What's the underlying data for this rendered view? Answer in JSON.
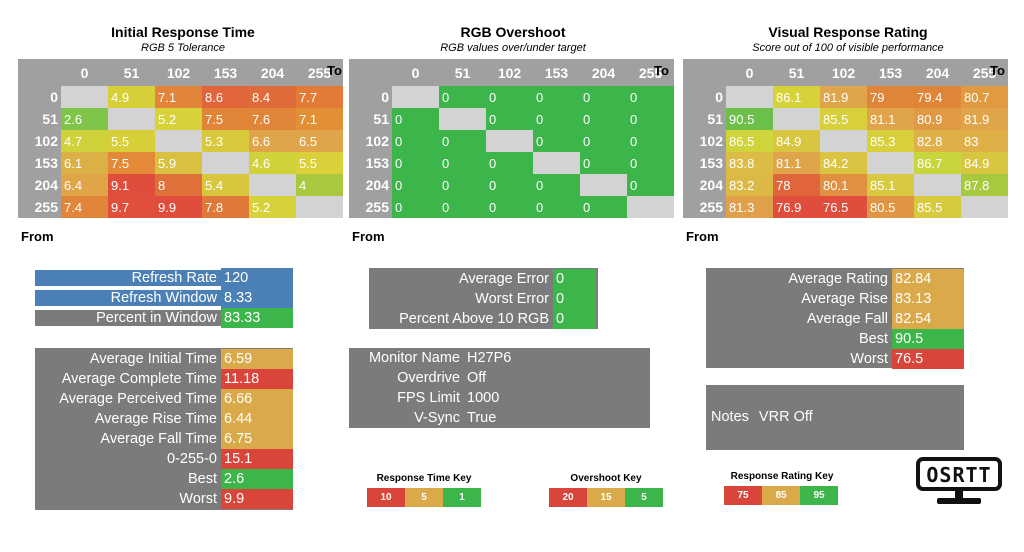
{
  "colors": {
    "header_gray": "#a0a0a0",
    "box_gray": "#7b7b7b",
    "empty_cell": "#d3d3d3",
    "blue": "#4a80b5",
    "green": "#3cb54a",
    "yellow_green": "#a9c83f",
    "yellow": "#d8d035",
    "gold": "#d9a94a",
    "orange": "#e27a36",
    "red": "#d9453a"
  },
  "chart_data": [
    {
      "type": "heatmap",
      "title": "Initial Response Time",
      "subtitle": "RGB 5 Tolerance",
      "xlabel": "To",
      "ylabel": "From",
      "columns": [
        "0",
        "51",
        "102",
        "153",
        "204",
        "255"
      ],
      "rows": [
        "0",
        "51",
        "102",
        "153",
        "204",
        "255"
      ],
      "values": [
        [
          "",
          "4.9",
          "7.1",
          "8.6",
          "8.4",
          "7.7"
        ],
        [
          "2.6",
          "",
          "5.2",
          "7.5",
          "7.6",
          "7.1"
        ],
        [
          "4.7",
          "5.5",
          "",
          "5.3",
          "6.6",
          "6.5"
        ],
        [
          "6.1",
          "7.5",
          "5.9",
          "",
          "4.6",
          "5.5"
        ],
        [
          "6.4",
          "9.1",
          "8",
          "5.4",
          "",
          "4"
        ],
        [
          "7.4",
          "9.7",
          "9.9",
          "7.8",
          "5.2",
          ""
        ]
      ],
      "colors": [
        [
          "#d3d3d3",
          "#d6cf38",
          "#e2853a",
          "#e0653a",
          "#e06b3a",
          "#e37a36"
        ],
        [
          "#7fc54a",
          "#d3d3d3",
          "#d7d13a",
          "#e08437",
          "#e08437",
          "#e29036"
        ],
        [
          "#cfd23a",
          "#d6cf38",
          "#d3d3d3",
          "#d8c83c",
          "#e0a44a",
          "#e0a44a"
        ],
        [
          "#dbb046",
          "#e38a38",
          "#d9c040",
          "#d3d3d3",
          "#d0d23a",
          "#d9d03a"
        ],
        [
          "#e0a449",
          "#e04d3c",
          "#e0703a",
          "#d8c63c",
          "#d3d3d3",
          "#a9c83f"
        ],
        [
          "#e0853a",
          "#e14e3c",
          "#e04d3c",
          "#e0783a",
          "#d6d23a",
          "#d3d3d3"
        ]
      ]
    },
    {
      "type": "heatmap",
      "title": "RGB Overshoot",
      "subtitle": "RGB values over/under target",
      "xlabel": "To",
      "ylabel": "From",
      "columns": [
        "0",
        "51",
        "102",
        "153",
        "204",
        "255"
      ],
      "rows": [
        "0",
        "51",
        "102",
        "153",
        "204",
        "255"
      ],
      "values": [
        [
          "",
          "0",
          "0",
          "0",
          "0",
          "0"
        ],
        [
          "0",
          "",
          "0",
          "0",
          "0",
          "0"
        ],
        [
          "0",
          "0",
          "",
          "0",
          "0",
          "0"
        ],
        [
          "0",
          "0",
          "0",
          "",
          "0",
          "0"
        ],
        [
          "0",
          "0",
          "0",
          "0",
          "",
          "0"
        ],
        [
          "0",
          "0",
          "0",
          "0",
          "0",
          ""
        ]
      ],
      "colors": [
        [
          "#d3d3d3",
          "#3cb54a",
          "#3cb54a",
          "#3cb54a",
          "#3cb54a",
          "#3cb54a"
        ],
        [
          "#3cb54a",
          "#d3d3d3",
          "#3cb54a",
          "#3cb54a",
          "#3cb54a",
          "#3cb54a"
        ],
        [
          "#3cb54a",
          "#3cb54a",
          "#d3d3d3",
          "#3cb54a",
          "#3cb54a",
          "#3cb54a"
        ],
        [
          "#3cb54a",
          "#3cb54a",
          "#3cb54a",
          "#d3d3d3",
          "#3cb54a",
          "#3cb54a"
        ],
        [
          "#3cb54a",
          "#3cb54a",
          "#3cb54a",
          "#3cb54a",
          "#d3d3d3",
          "#3cb54a"
        ],
        [
          "#3cb54a",
          "#3cb54a",
          "#3cb54a",
          "#3cb54a",
          "#3cb54a",
          "#d3d3d3"
        ]
      ]
    },
    {
      "type": "heatmap",
      "title": "Visual Response Rating",
      "subtitle": "Score out of 100 of visible performance",
      "xlabel": "To",
      "ylabel": "From",
      "columns": [
        "0",
        "51",
        "102",
        "153",
        "204",
        "255"
      ],
      "rows": [
        "0",
        "51",
        "102",
        "153",
        "204",
        "255"
      ],
      "values": [
        [
          "",
          "86.1",
          "81.9",
          "79",
          "79.4",
          "80.7"
        ],
        [
          "90.5",
          "",
          "85.5",
          "81.1",
          "80.9",
          "81.9"
        ],
        [
          "86.5",
          "84.9",
          "",
          "85.3",
          "82.8",
          "83"
        ],
        [
          "83.8",
          "81.1",
          "84.2",
          "",
          "86.7",
          "84.9"
        ],
        [
          "83.2",
          "78",
          "80.1",
          "85.1",
          "",
          "87.8"
        ],
        [
          "81.3",
          "76.9",
          "76.5",
          "80.5",
          "85.5",
          ""
        ]
      ],
      "colors": [
        [
          "#d3d3d3",
          "#d6d23a",
          "#e0a44a",
          "#e08437",
          "#e08437",
          "#e09a40"
        ],
        [
          "#6cc04a",
          "#d3d3d3",
          "#d8d03a",
          "#e0a44a",
          "#e09a44",
          "#e0a44a"
        ],
        [
          "#cfd43a",
          "#d9c640",
          "#d3d3d3",
          "#d7d03a",
          "#dfb048",
          "#dfb048"
        ],
        [
          "#dcbc44",
          "#e0a44a",
          "#dbc442",
          "#d3d3d3",
          "#c9d53c",
          "#d9c640"
        ],
        [
          "#dcb846",
          "#e0653a",
          "#e09040",
          "#d9c940",
          "#d3d3d3",
          "#a6c93f"
        ],
        [
          "#e0a04a",
          "#e04d3c",
          "#e04d3c",
          "#e09444",
          "#d8ca3e",
          "#d3d3d3"
        ]
      ]
    }
  ],
  "refresh_box": {
    "rows": [
      {
        "label": "Refresh Rate",
        "value": "120",
        "label_color": "#4a80b5",
        "value_color": "#4a80b5"
      },
      {
        "label": "Refresh Window",
        "value": "8.33",
        "label_color": "#4a80b5",
        "value_color": "#4a80b5"
      },
      {
        "label": "Percent in Window",
        "value": "83.33",
        "label_color": "#7b7b7b",
        "value_color": "#3cb54a"
      }
    ]
  },
  "response_stats": {
    "rows": [
      {
        "label": "Average Initial Time",
        "value": "6.59",
        "value_color": "#d9a94a"
      },
      {
        "label": "Average Complete Time",
        "value": "11.18",
        "value_color": "#d9453a"
      },
      {
        "label": "Average Perceived Time",
        "value": "6.66",
        "value_color": "#d9a94a"
      },
      {
        "label": "Average Rise Time",
        "value": "6.44",
        "value_color": "#d9a94a"
      },
      {
        "label": "Average Fall Time",
        "value": "6.75",
        "value_color": "#d9a94a"
      },
      {
        "label": "0-255-0",
        "value": "15.1",
        "value_color": "#d9453a"
      },
      {
        "label": "Best",
        "value": "2.6",
        "value_color": "#3cb54a"
      },
      {
        "label": "Worst",
        "value": "9.9",
        "value_color": "#d9453a"
      }
    ]
  },
  "overshoot_stats": {
    "rows": [
      {
        "label": "Average Error",
        "value": "0",
        "value_color": "#3cb54a"
      },
      {
        "label": "Worst Error",
        "value": "0",
        "value_color": "#3cb54a"
      },
      {
        "label": "Percent Above 10 RGB",
        "value": "0",
        "value_color": "#3cb54a"
      }
    ]
  },
  "monitor_info": {
    "rows": [
      {
        "label": "Monitor Name",
        "value": "H27P6"
      },
      {
        "label": "Overdrive",
        "value": "Off"
      },
      {
        "label": "FPS Limit",
        "value": "1000"
      },
      {
        "label": "V-Sync",
        "value": "True"
      }
    ]
  },
  "rating_stats": {
    "rows": [
      {
        "label": "Average Rating",
        "value": "82.84",
        "value_color": "#d9a94a"
      },
      {
        "label": "Average Rise",
        "value": "83.13",
        "value_color": "#d9a94a"
      },
      {
        "label": "Average Fall",
        "value": "82.54",
        "value_color": "#d9a94a"
      },
      {
        "label": "Best",
        "value": "90.5",
        "value_color": "#3cb54a"
      },
      {
        "label": "Worst",
        "value": "76.5",
        "value_color": "#d9453a"
      }
    ]
  },
  "notes": {
    "label": "Notes",
    "value": "VRR Off"
  },
  "keys": [
    {
      "title": "Response Time Key",
      "cells": [
        {
          "text": "10",
          "color": "#d9453a"
        },
        {
          "text": "5",
          "color": "#d9a94a"
        },
        {
          "text": "1",
          "color": "#3cb54a"
        }
      ]
    },
    {
      "title": "Overshoot Key",
      "cells": [
        {
          "text": "20",
          "color": "#d9453a"
        },
        {
          "text": "15",
          "color": "#d9a94a"
        },
        {
          "text": "5",
          "color": "#3cb54a"
        }
      ]
    },
    {
      "title": "Response Rating Key",
      "cells": [
        {
          "text": "75",
          "color": "#d9453a"
        },
        {
          "text": "85",
          "color": "#d9a94a"
        },
        {
          "text": "95",
          "color": "#3cb54a"
        }
      ]
    }
  ],
  "logo": {
    "text": "OSRTT"
  }
}
